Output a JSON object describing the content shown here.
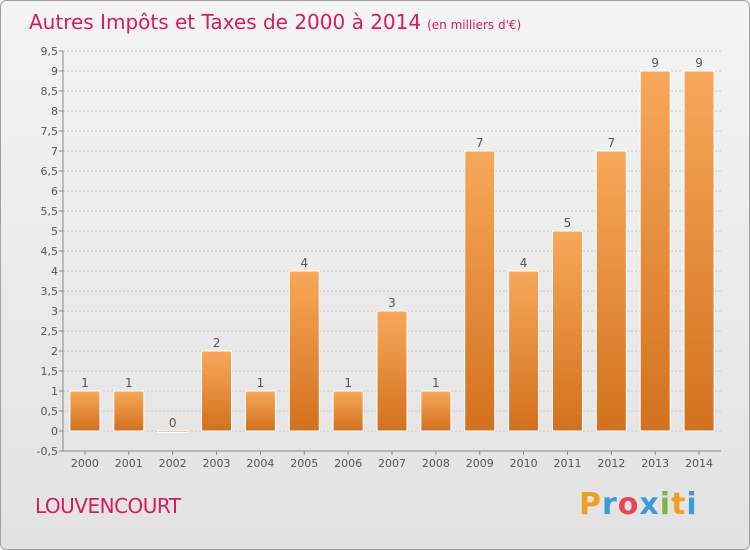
{
  "title": "Autres Impôts et Taxes de 2000 à 2014",
  "unit": "(en milliers d'€)",
  "commune": "LOUVENCOURT",
  "brand": {
    "letters": [
      "P",
      "r",
      "o",
      "x",
      "i",
      "t",
      "i"
    ],
    "colors": [
      "#f0a020",
      "#3a9bd9",
      "#e8455a",
      "#3a9bd9",
      "#7ab648",
      "#f0a020",
      "#3a9bd9"
    ]
  },
  "colors": {
    "title": "#d81b5a",
    "bar_light": "#f8a85a",
    "bar_dark": "#d2711e",
    "grid": "#c8c8c8",
    "axis": "#888888",
    "text": "#555555"
  },
  "chart_data": {
    "type": "bar",
    "categories": [
      "2000",
      "2001",
      "2002",
      "2003",
      "2004",
      "2005",
      "2006",
      "2007",
      "2008",
      "2009",
      "2010",
      "2011",
      "2012",
      "2013",
      "2014"
    ],
    "values": [
      1,
      1,
      0,
      2,
      1,
      4,
      1,
      3,
      1,
      7,
      4,
      5,
      7,
      9,
      9
    ],
    "data_labels": [
      "1",
      "1",
      "0",
      "2",
      "1",
      "4",
      "1",
      "3",
      "1",
      "7",
      "4",
      "5",
      "7",
      "9",
      "9"
    ],
    "ylim": [
      -0.5,
      9.5
    ],
    "yticks": [
      "-0,5",
      "0",
      "0,5",
      "1",
      "1,5",
      "2",
      "2,5",
      "3",
      "3,5",
      "4",
      "4,5",
      "5",
      "5,5",
      "6",
      "6,5",
      "7",
      "7,5",
      "8",
      "8,5",
      "9",
      "9,5"
    ],
    "xlabel": "",
    "ylabel": "",
    "grid": true
  }
}
